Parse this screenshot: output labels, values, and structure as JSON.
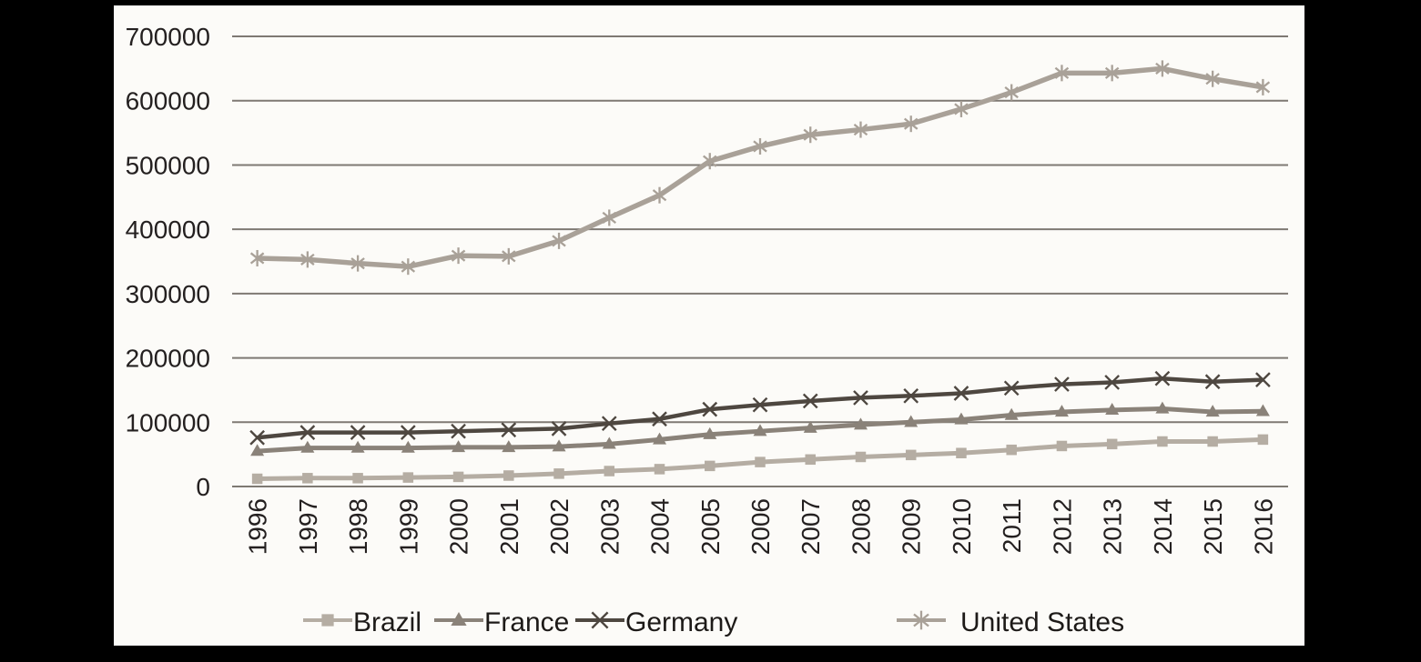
{
  "page": {
    "background": "#000000",
    "panel_background": "#fcfbf8"
  },
  "chart_data": {
    "type": "line",
    "title": "",
    "xlabel": "",
    "ylabel": "",
    "categories": [
      "1996",
      "1997",
      "1998",
      "1999",
      "2000",
      "2001",
      "2002",
      "2003",
      "2004",
      "2005",
      "2006",
      "2007",
      "2008",
      "2009",
      "2010",
      "2011",
      "2012",
      "2013",
      "2014",
      "2015",
      "2016"
    ],
    "y_ticks": [
      0,
      100000,
      200000,
      300000,
      400000,
      500000,
      600000,
      700000
    ],
    "ylim": [
      0,
      700000
    ],
    "grid": true,
    "legend_position": "bottom",
    "axis_color": "#7e7973",
    "text_color": "#242020",
    "series": [
      {
        "name": "Brazil",
        "marker": "square",
        "color": "#b5ada3",
        "values": [
          12000,
          13000,
          13000,
          14000,
          15000,
          17000,
          20000,
          24000,
          27000,
          32000,
          38000,
          42000,
          46000,
          49000,
          52000,
          57000,
          63000,
          66000,
          70000,
          70000,
          73000
        ]
      },
      {
        "name": "France",
        "marker": "triangle",
        "color": "#8a8279",
        "values": [
          55000,
          60000,
          60000,
          60000,
          61000,
          61000,
          62000,
          66000,
          73000,
          81000,
          86000,
          91000,
          96000,
          100000,
          104000,
          111000,
          116000,
          119000,
          121000,
          116000,
          117000
        ]
      },
      {
        "name": "Germany",
        "marker": "x",
        "color": "#4e4740",
        "values": [
          76000,
          84000,
          84000,
          84000,
          86000,
          88000,
          90000,
          98000,
          105000,
          120000,
          127000,
          133000,
          138000,
          141000,
          145000,
          153000,
          159000,
          162000,
          168000,
          163000,
          166000
        ]
      },
      {
        "name": "United States",
        "marker": "asterisk",
        "color": "#a9a198",
        "values": [
          355000,
          353000,
          347000,
          342000,
          359000,
          358000,
          382000,
          418000,
          453000,
          506000,
          529000,
          547000,
          555000,
          564000,
          587000,
          613000,
          643000,
          643000,
          650000,
          634000,
          621000
        ]
      }
    ]
  }
}
